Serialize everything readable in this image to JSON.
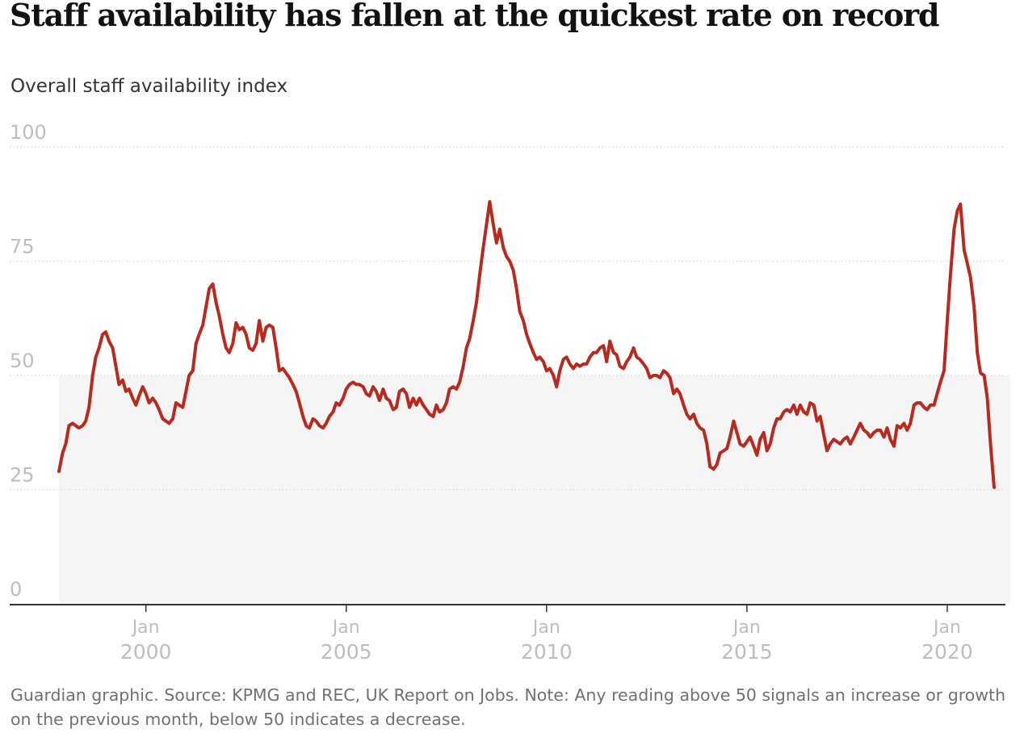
{
  "header": {
    "title": "Staff availability has fallen at the quickest rate on record",
    "subtitle": "Overall staff availability index"
  },
  "footer": {
    "note": "Guardian graphic. Source: KPMG and REC, UK Report on Jobs. Note: Any reading above 50 signals an increase or growth on the previous month, below 50 indicates a decrease."
  },
  "colors": {
    "line": "#b8291e",
    "below_50_band": "#f5f5f5",
    "grid": "#dcdcdc",
    "axis": "#333333",
    "tick_label": "#bdbdbd"
  },
  "chart_data": {
    "type": "line",
    "title": "Staff availability has fallen at the quickest rate on record",
    "ylabel": "Overall staff availability index",
    "ylim": [
      0,
      100
    ],
    "yticks": [
      0,
      25,
      50,
      75,
      100
    ],
    "xlim": [
      1997.75,
      2021.85
    ],
    "xticks": [
      {
        "value": 2000,
        "month": "Jan",
        "year": "2000"
      },
      {
        "value": 2005,
        "month": "Jan",
        "year": "2005"
      },
      {
        "value": 2010,
        "month": "Jan",
        "year": "2010"
      },
      {
        "value": 2015,
        "month": "Jan",
        "year": "2015"
      },
      {
        "value": 2020,
        "month": "Jan",
        "year": "2020"
      }
    ],
    "shaded_region": {
      "y_from": 0,
      "y_to": 50,
      "meaning": "below 50 indicates a decrease"
    },
    "grid": true,
    "series": [
      {
        "values": [
          [
            1997.83,
            29
          ],
          [
            1997.92,
            33
          ],
          [
            1998.0,
            35
          ],
          [
            1998.08,
            39
          ],
          [
            1998.17,
            39.5
          ],
          [
            1998.25,
            39
          ],
          [
            1998.33,
            38.5
          ],
          [
            1998.42,
            39
          ],
          [
            1998.5,
            40
          ],
          [
            1998.58,
            43
          ],
          [
            1998.67,
            50
          ],
          [
            1998.75,
            54
          ],
          [
            1998.83,
            56
          ],
          [
            1998.92,
            59
          ],
          [
            1999.0,
            59.5
          ],
          [
            1999.08,
            57.5
          ],
          [
            1999.17,
            56
          ],
          [
            1999.25,
            52
          ],
          [
            1999.33,
            48
          ],
          [
            1999.42,
            49
          ],
          [
            1999.5,
            46.5
          ],
          [
            1999.58,
            47
          ],
          [
            1999.67,
            45
          ],
          [
            1999.75,
            43.5
          ],
          [
            1999.83,
            45.5
          ],
          [
            1999.92,
            47.5
          ],
          [
            2000.0,
            46
          ],
          [
            2000.08,
            44
          ],
          [
            2000.17,
            45
          ],
          [
            2000.25,
            44
          ],
          [
            2000.33,
            42.5
          ],
          [
            2000.42,
            40.5
          ],
          [
            2000.5,
            40
          ],
          [
            2000.58,
            39.5
          ],
          [
            2000.67,
            40.5
          ],
          [
            2000.75,
            44
          ],
          [
            2000.83,
            43.5
          ],
          [
            2000.92,
            43
          ],
          [
            2001.0,
            46.5
          ],
          [
            2001.08,
            50
          ],
          [
            2001.17,
            51
          ],
          [
            2001.25,
            57
          ],
          [
            2001.33,
            59
          ],
          [
            2001.42,
            61
          ],
          [
            2001.5,
            65
          ],
          [
            2001.58,
            69
          ],
          [
            2001.67,
            70
          ],
          [
            2001.75,
            66
          ],
          [
            2001.83,
            63
          ],
          [
            2001.92,
            59
          ],
          [
            2002.0,
            56
          ],
          [
            2002.08,
            55
          ],
          [
            2002.17,
            57
          ],
          [
            2002.25,
            61.5
          ],
          [
            2002.33,
            60
          ],
          [
            2002.42,
            60.5
          ],
          [
            2002.5,
            59
          ],
          [
            2002.58,
            56
          ],
          [
            2002.67,
            55.5
          ],
          [
            2002.75,
            57
          ],
          [
            2002.83,
            62
          ],
          [
            2002.92,
            57.5
          ],
          [
            2003.0,
            60.5
          ],
          [
            2003.08,
            61
          ],
          [
            2003.17,
            60.5
          ],
          [
            2003.25,
            56
          ],
          [
            2003.33,
            51
          ],
          [
            2003.42,
            51.5
          ],
          [
            2003.5,
            50.5
          ],
          [
            2003.58,
            49.5
          ],
          [
            2003.67,
            48
          ],
          [
            2003.75,
            46.5
          ],
          [
            2003.83,
            44
          ],
          [
            2003.92,
            41
          ],
          [
            2004.0,
            39
          ],
          [
            2004.08,
            38.5
          ],
          [
            2004.17,
            40.5
          ],
          [
            2004.25,
            40
          ],
          [
            2004.33,
            39
          ],
          [
            2004.42,
            38.5
          ],
          [
            2004.5,
            39.5
          ],
          [
            2004.58,
            41
          ],
          [
            2004.67,
            42
          ],
          [
            2004.75,
            44
          ],
          [
            2004.83,
            43.5
          ],
          [
            2004.92,
            45
          ],
          [
            2005.0,
            47
          ],
          [
            2005.08,
            48
          ],
          [
            2005.17,
            48.5
          ],
          [
            2005.25,
            48
          ],
          [
            2005.33,
            48
          ],
          [
            2005.42,
            47.5
          ],
          [
            2005.5,
            46
          ],
          [
            2005.58,
            45.5
          ],
          [
            2005.67,
            47.5
          ],
          [
            2005.75,
            46.5
          ],
          [
            2005.83,
            44.5
          ],
          [
            2005.92,
            47
          ],
          [
            2006.0,
            45
          ],
          [
            2006.08,
            44.5
          ],
          [
            2006.17,
            42.5
          ],
          [
            2006.25,
            43
          ],
          [
            2006.33,
            46.5
          ],
          [
            2006.42,
            47
          ],
          [
            2006.5,
            46
          ],
          [
            2006.58,
            43
          ],
          [
            2006.67,
            45
          ],
          [
            2006.75,
            43.5
          ],
          [
            2006.83,
            45
          ],
          [
            2006.92,
            43.5
          ],
          [
            2007.0,
            42.5
          ],
          [
            2007.08,
            41.5
          ],
          [
            2007.17,
            41
          ],
          [
            2007.25,
            43.5
          ],
          [
            2007.33,
            42
          ],
          [
            2007.42,
            42.5
          ],
          [
            2007.5,
            44
          ],
          [
            2007.58,
            47
          ],
          [
            2007.67,
            47.5
          ],
          [
            2007.75,
            47
          ],
          [
            2007.83,
            48.5
          ],
          [
            2007.92,
            52
          ],
          [
            2008.0,
            56
          ],
          [
            2008.08,
            58
          ],
          [
            2008.17,
            62
          ],
          [
            2008.25,
            66
          ],
          [
            2008.33,
            72
          ],
          [
            2008.42,
            78
          ],
          [
            2008.5,
            83
          ],
          [
            2008.58,
            88
          ],
          [
            2008.67,
            83
          ],
          [
            2008.75,
            79
          ],
          [
            2008.83,
            82
          ],
          [
            2008.92,
            78
          ],
          [
            2009.0,
            76
          ],
          [
            2009.08,
            75
          ],
          [
            2009.17,
            73
          ],
          [
            2009.25,
            69
          ],
          [
            2009.33,
            64
          ],
          [
            2009.42,
            62
          ],
          [
            2009.5,
            59
          ],
          [
            2009.58,
            57
          ],
          [
            2009.67,
            55
          ],
          [
            2009.75,
            53.5
          ],
          [
            2009.83,
            54
          ],
          [
            2009.92,
            53
          ],
          [
            2010.0,
            51
          ],
          [
            2010.08,
            51.5
          ],
          [
            2010.17,
            50
          ],
          [
            2010.25,
            47.5
          ],
          [
            2010.33,
            51
          ],
          [
            2010.42,
            53.5
          ],
          [
            2010.5,
            54
          ],
          [
            2010.58,
            52.5
          ],
          [
            2010.67,
            51.5
          ],
          [
            2010.75,
            52.5
          ],
          [
            2010.83,
            52
          ],
          [
            2010.92,
            52.5
          ],
          [
            2011.0,
            52.5
          ],
          [
            2011.08,
            54
          ],
          [
            2011.17,
            55
          ],
          [
            2011.25,
            55
          ],
          [
            2011.33,
            56
          ],
          [
            2011.42,
            56.5
          ],
          [
            2011.5,
            53
          ],
          [
            2011.58,
            57.5
          ],
          [
            2011.67,
            55
          ],
          [
            2011.75,
            54.5
          ],
          [
            2011.83,
            52
          ],
          [
            2011.92,
            51.5
          ],
          [
            2012.0,
            53
          ],
          [
            2012.08,
            54
          ],
          [
            2012.17,
            56
          ],
          [
            2012.25,
            54
          ],
          [
            2012.33,
            53.5
          ],
          [
            2012.42,
            52.5
          ],
          [
            2012.5,
            51.5
          ],
          [
            2012.58,
            49.5
          ],
          [
            2012.67,
            50
          ],
          [
            2012.75,
            50
          ],
          [
            2012.83,
            49.5
          ],
          [
            2012.92,
            51
          ],
          [
            2013.0,
            50.5
          ],
          [
            2013.08,
            49.5
          ],
          [
            2013.17,
            46
          ],
          [
            2013.25,
            47
          ],
          [
            2013.33,
            46
          ],
          [
            2013.42,
            43.5
          ],
          [
            2013.5,
            41.5
          ],
          [
            2013.58,
            40.5
          ],
          [
            2013.67,
            41.5
          ],
          [
            2013.75,
            39.5
          ],
          [
            2013.83,
            38.5
          ],
          [
            2013.92,
            38
          ],
          [
            2014.0,
            35
          ],
          [
            2014.08,
            30
          ],
          [
            2014.17,
            29.5
          ],
          [
            2014.25,
            30.5
          ],
          [
            2014.33,
            33
          ],
          [
            2014.42,
            33.5
          ],
          [
            2014.5,
            34
          ],
          [
            2014.58,
            36.5
          ],
          [
            2014.67,
            40
          ],
          [
            2014.75,
            37.5
          ],
          [
            2014.83,
            35
          ],
          [
            2014.92,
            34.5
          ],
          [
            2015.0,
            35.5
          ],
          [
            2015.08,
            36.5
          ],
          [
            2015.17,
            34.5
          ],
          [
            2015.25,
            32.5
          ],
          [
            2015.33,
            36
          ],
          [
            2015.42,
            37.5
          ],
          [
            2015.5,
            33.5
          ],
          [
            2015.58,
            35
          ],
          [
            2015.67,
            38.5
          ],
          [
            2015.75,
            40.5
          ],
          [
            2015.83,
            40.5
          ],
          [
            2015.92,
            42
          ],
          [
            2016.0,
            42.5
          ],
          [
            2016.08,
            42
          ],
          [
            2016.17,
            43.5
          ],
          [
            2016.25,
            41.5
          ],
          [
            2016.33,
            43.5
          ],
          [
            2016.42,
            42
          ],
          [
            2016.5,
            41.5
          ],
          [
            2016.58,
            44
          ],
          [
            2016.67,
            43.5
          ],
          [
            2016.75,
            40
          ],
          [
            2016.83,
            41
          ],
          [
            2016.92,
            37
          ],
          [
            2017.0,
            33.5
          ],
          [
            2017.08,
            35
          ],
          [
            2017.17,
            36
          ],
          [
            2017.25,
            35.5
          ],
          [
            2017.33,
            35
          ],
          [
            2017.42,
            36
          ],
          [
            2017.5,
            36.5
          ],
          [
            2017.58,
            35
          ],
          [
            2017.67,
            36.5
          ],
          [
            2017.75,
            38
          ],
          [
            2017.83,
            39.5
          ],
          [
            2017.92,
            38
          ],
          [
            2018.0,
            37.5
          ],
          [
            2018.08,
            36.5
          ],
          [
            2018.17,
            37.5
          ],
          [
            2018.25,
            38
          ],
          [
            2018.33,
            38
          ],
          [
            2018.42,
            36.5
          ],
          [
            2018.5,
            38.5
          ],
          [
            2018.58,
            36
          ],
          [
            2018.67,
            34.5
          ],
          [
            2018.75,
            39
          ],
          [
            2018.83,
            38.5
          ],
          [
            2018.92,
            39.5
          ],
          [
            2019.0,
            38
          ],
          [
            2019.08,
            39.5
          ],
          [
            2019.17,
            43.5
          ],
          [
            2019.25,
            44
          ],
          [
            2019.33,
            44
          ],
          [
            2019.42,
            43
          ],
          [
            2019.5,
            42.5
          ],
          [
            2019.58,
            43.5
          ],
          [
            2019.67,
            43.5
          ],
          [
            2019.75,
            46
          ],
          [
            2019.83,
            48.5
          ],
          [
            2019.92,
            51
          ],
          [
            2020.0,
            62
          ],
          [
            2020.08,
            72
          ],
          [
            2020.17,
            82
          ],
          [
            2020.25,
            86
          ],
          [
            2020.33,
            87.5
          ],
          [
            2020.42,
            77.5
          ],
          [
            2020.5,
            74.5
          ],
          [
            2020.58,
            71.5
          ],
          [
            2020.67,
            65
          ],
          [
            2020.75,
            55
          ],
          [
            2020.83,
            50.5
          ],
          [
            2020.92,
            50
          ],
          [
            2021.0,
            45
          ],
          [
            2021.08,
            35
          ],
          [
            2021.17,
            25.5
          ]
        ]
      }
    ]
  }
}
